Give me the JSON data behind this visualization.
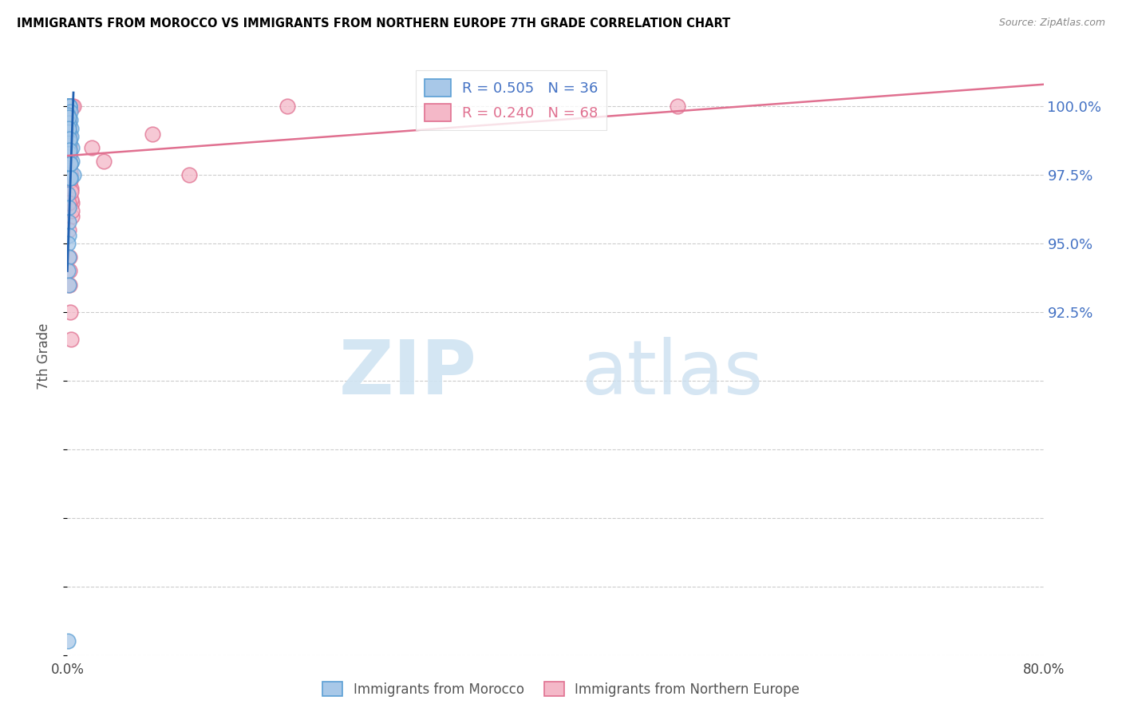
{
  "title": "IMMIGRANTS FROM MOROCCO VS IMMIGRANTS FROM NORTHERN EUROPE 7TH GRADE CORRELATION CHART",
  "source": "Source: ZipAtlas.com",
  "ylabel": "7th Grade",
  "x_min": 0.0,
  "x_max": 80.0,
  "y_min": 80.0,
  "y_max": 101.8,
  "blue_color": "#a8c8e8",
  "blue_edge": "#5b9fd4",
  "blue_line": "#2060b0",
  "pink_color": "#f4b8c8",
  "pink_edge": "#e07090",
  "pink_line": "#e07090",
  "legend_blue_r": "R = 0.505",
  "legend_blue_n": "N = 36",
  "legend_pink_r": "R = 0.240",
  "legend_pink_n": "N = 68",
  "blue_scatter_x": [
    0.05,
    0.08,
    0.1,
    0.12,
    0.15,
    0.18,
    0.2,
    0.22,
    0.25,
    0.28,
    0.3,
    0.35,
    0.4,
    0.5,
    0.06,
    0.09,
    0.11,
    0.14,
    0.17,
    0.21,
    0.24,
    0.08,
    0.13,
    0.16,
    0.19,
    0.23,
    0.27,
    0.06,
    0.1,
    0.08,
    0.12,
    0.07,
    0.09,
    0.05,
    0.08,
    0.06
  ],
  "blue_scatter_y": [
    100.0,
    100.0,
    100.0,
    100.0,
    100.0,
    100.0,
    100.0,
    99.8,
    99.5,
    99.2,
    98.9,
    98.5,
    98.0,
    97.5,
    99.7,
    99.4,
    99.1,
    98.7,
    98.3,
    97.9,
    97.4,
    99.6,
    99.2,
    98.8,
    98.4,
    97.9,
    97.4,
    96.8,
    96.3,
    95.8,
    95.3,
    95.0,
    94.5,
    94.0,
    93.5,
    80.5
  ],
  "pink_scatter_x": [
    0.05,
    0.08,
    0.1,
    0.12,
    0.15,
    0.18,
    0.2,
    0.22,
    0.25,
    0.28,
    0.3,
    0.35,
    0.4,
    0.5,
    0.06,
    0.09,
    0.11,
    0.14,
    0.17,
    0.21,
    0.24,
    0.07,
    0.13,
    0.16,
    0.07,
    0.1,
    0.13,
    0.16,
    0.2,
    0.25,
    0.3,
    0.38,
    0.06,
    0.09,
    0.12,
    0.15,
    0.19,
    0.08,
    0.11,
    0.14,
    0.18,
    0.23,
    0.08,
    0.12,
    0.16,
    0.21,
    0.26,
    0.32,
    0.4,
    0.09,
    0.13,
    0.17,
    0.22,
    0.28,
    0.35,
    2.0,
    3.0,
    7.0,
    10.0,
    18.0,
    50.0,
    0.1,
    0.14,
    0.19,
    0.24,
    0.3,
    0.1,
    0.14
  ],
  "pink_scatter_y": [
    100.0,
    100.0,
    100.0,
    100.0,
    100.0,
    100.0,
    100.0,
    100.0,
    100.0,
    100.0,
    100.0,
    100.0,
    100.0,
    100.0,
    99.5,
    99.2,
    98.8,
    98.5,
    98.2,
    97.9,
    97.5,
    99.8,
    99.4,
    99.0,
    99.7,
    99.3,
    98.9,
    98.5,
    98.0,
    97.5,
    97.0,
    96.5,
    99.6,
    99.2,
    98.8,
    98.3,
    97.8,
    99.5,
    99.1,
    98.6,
    98.1,
    97.5,
    99.4,
    99.0,
    98.5,
    97.9,
    97.3,
    96.6,
    96.0,
    99.3,
    98.8,
    98.2,
    97.6,
    96.9,
    96.2,
    98.5,
    98.0,
    99.0,
    97.5,
    100.0,
    100.0,
    95.5,
    94.5,
    93.5,
    92.5,
    91.5,
    96.5,
    94.0
  ],
  "blue_line_x0": 0.0,
  "blue_line_y0": 94.0,
  "blue_line_x1": 0.5,
  "blue_line_y1": 100.5,
  "pink_line_x0": 0.0,
  "pink_line_y0": 98.2,
  "pink_line_x1": 80.0,
  "pink_line_y1": 100.8
}
